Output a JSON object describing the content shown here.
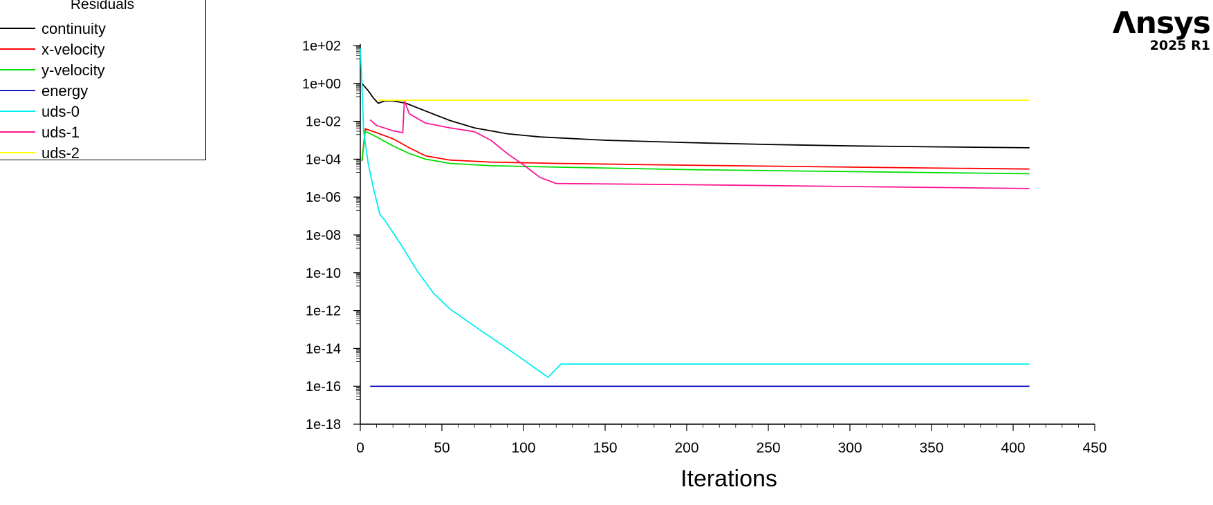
{
  "branding": {
    "name": "Λnsys",
    "version": "2025 R1"
  },
  "chart_data": {
    "type": "line",
    "title": "",
    "legend_title": "Residuals",
    "legend_position": "top-left",
    "xlabel": "Iterations",
    "ylabel": "",
    "xlim": [
      0,
      450
    ],
    "x_ticks": [
      0,
      50,
      100,
      150,
      200,
      250,
      300,
      350,
      400,
      450
    ],
    "ylim": [
      1e-18,
      100
    ],
    "y_scale": "log",
    "y_ticks": [
      100.0,
      1,
      0.01,
      0.0001,
      1e-06,
      1e-08,
      1e-10,
      1e-12,
      1e-14,
      1e-16,
      1e-18
    ],
    "y_tick_labels": [
      "1e+02",
      "1e+00",
      "1e-02",
      "1e-04",
      "1e-06",
      "1e-08",
      "1e-10",
      "1e-12",
      "1e-14",
      "1e-16",
      "1e-18"
    ],
    "grid": false,
    "series": [
      {
        "name": "continuity",
        "color": "#000000",
        "x": [
          1,
          5,
          8,
          11,
          15,
          20,
          28,
          40,
          55,
          70,
          90,
          110,
          150,
          200,
          250,
          300,
          350,
          410
        ],
        "y": [
          1.0,
          0.4,
          0.17,
          0.09,
          0.12,
          0.12,
          0.09,
          0.035,
          0.011,
          0.0045,
          0.0022,
          0.0015,
          0.001,
          0.00075,
          0.0006,
          0.0005,
          0.00045,
          0.0004
        ]
      },
      {
        "name": "x-velocity",
        "color": "#ff0000",
        "x": [
          1,
          3,
          10,
          20,
          30,
          40,
          55,
          80,
          120,
          200,
          300,
          410
        ],
        "y": [
          8e-05,
          0.004,
          0.0025,
          0.0012,
          0.0004,
          0.00015,
          9e-05,
          7e-05,
          6e-05,
          4.8e-05,
          3.8e-05,
          3e-05
        ]
      },
      {
        "name": "y-velocity",
        "color": "#00dd00",
        "x": [
          1,
          3,
          10,
          20,
          30,
          40,
          55,
          80,
          120,
          200,
          300,
          410
        ],
        "y": [
          8e-05,
          0.003,
          0.0015,
          0.0005,
          0.0002,
          0.0001,
          6e-05,
          4.5e-05,
          3.8e-05,
          2.8e-05,
          2.2e-05,
          1.7e-05
        ]
      },
      {
        "name": "energy",
        "color": "#1a1acc",
        "x": [
          6,
          50,
          100,
          150,
          200,
          250,
          300,
          350,
          410
        ],
        "y": [
          1e-16,
          1e-16,
          1e-16,
          1e-16,
          1e-16,
          1e-16,
          1e-16,
          1e-16,
          1e-16
        ]
      },
      {
        "name": "uds-0",
        "color": "#00eeee",
        "x": [
          0,
          1,
          2,
          5,
          8,
          12,
          15,
          25,
          35,
          45,
          55,
          70,
          85,
          100,
          115,
          123,
          200,
          300,
          410
        ],
        "y": [
          70,
          1,
          0.003,
          5e-05,
          3e-06,
          1.2e-07,
          6e-08,
          3e-09,
          1.2e-10,
          8e-12,
          1.2e-12,
          1.5e-13,
          2e-14,
          2.5e-15,
          3e-16,
          1.5e-15,
          1.5e-15,
          1.5e-15,
          1.5e-15
        ]
      },
      {
        "name": "uds-1",
        "color": "#ff1493",
        "x": [
          6,
          10,
          20,
          26,
          27,
          30,
          40,
          55,
          70,
          80,
          90,
          100,
          110,
          120,
          200,
          300,
          410
        ],
        "y": [
          0.012,
          0.006,
          0.0032,
          0.0025,
          0.13,
          0.025,
          0.008,
          0.0045,
          0.0028,
          0.001,
          0.0002,
          5e-05,
          1.1e-05,
          5.2e-06,
          4.5e-06,
          3.6e-06,
          2.8e-06
        ]
      },
      {
        "name": "uds-2",
        "color": "#ffff00",
        "x": [
          11,
          410
        ],
        "y": [
          0.13,
          0.13
        ]
      }
    ]
  }
}
